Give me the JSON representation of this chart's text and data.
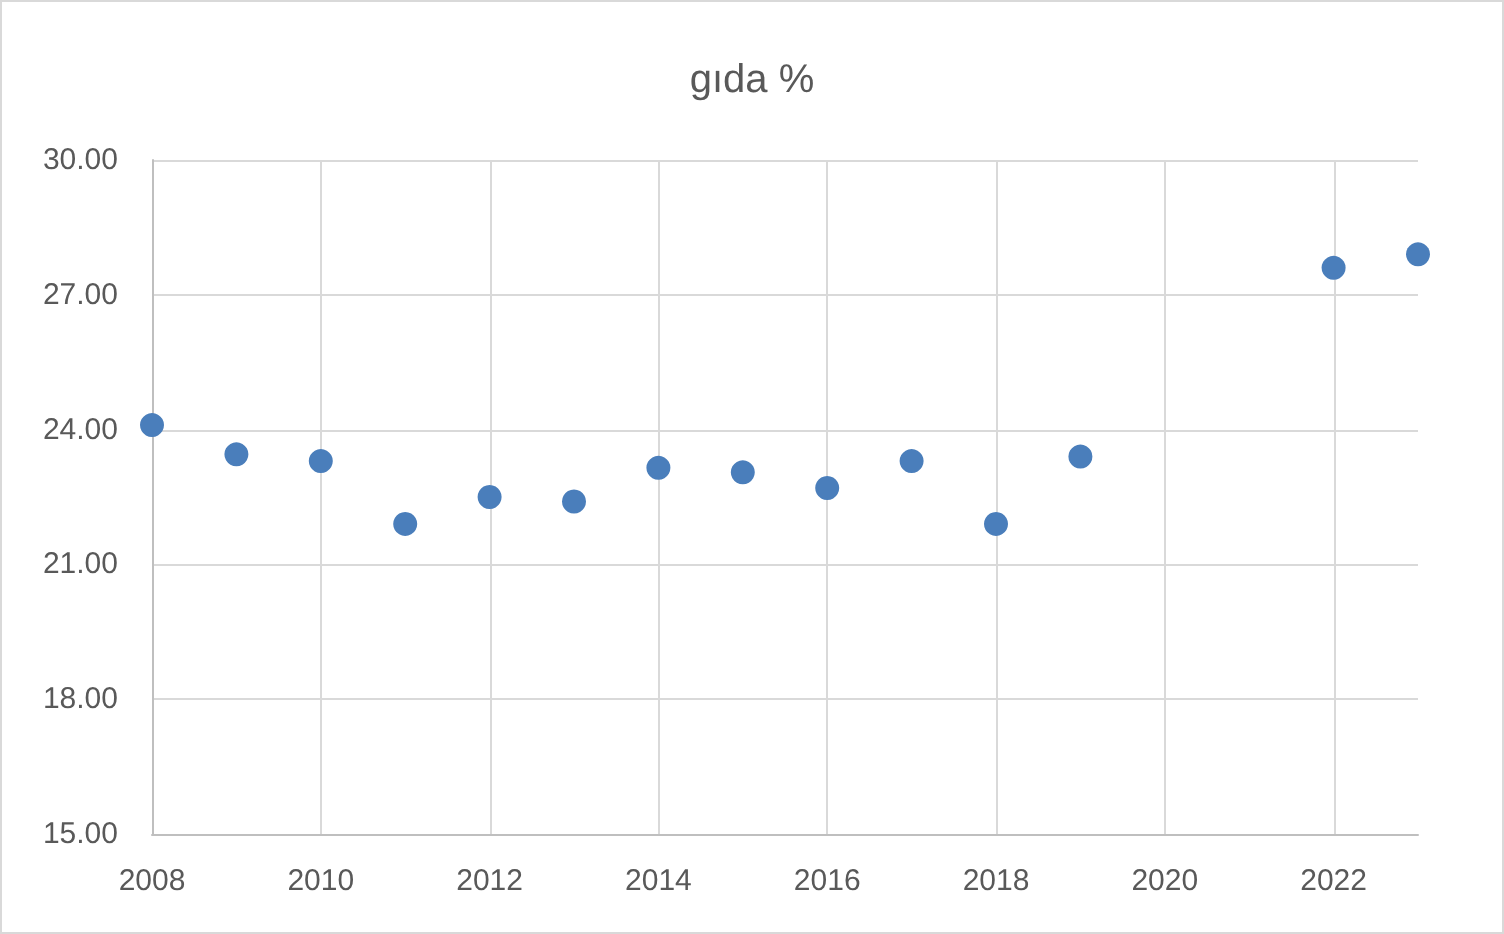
{
  "chart_data": {
    "type": "scatter",
    "title": "gıda %",
    "x": [
      2008,
      2009,
      2010,
      2011,
      2012,
      2013,
      2014,
      2015,
      2016,
      2017,
      2018,
      2019,
      2022,
      2023
    ],
    "values": [
      24.1,
      23.45,
      23.3,
      21.9,
      22.5,
      22.4,
      23.15,
      23.05,
      22.7,
      23.3,
      21.9,
      23.4,
      27.6,
      27.9
    ],
    "color": "#4a7ebb",
    "marker": "circle",
    "xlim": [
      2008,
      2023
    ],
    "xticks": [
      2008,
      2010,
      2012,
      2014,
      2016,
      2018,
      2020,
      2022
    ],
    "ylim": [
      15,
      30
    ],
    "yticks": [
      {
        "value": 15,
        "label": "15.00"
      },
      {
        "value": 18,
        "label": "18.00"
      },
      {
        "value": 21,
        "label": "21.00"
      },
      {
        "value": 24,
        "label": "24.00"
      },
      {
        "value": 27,
        "label": "27.00"
      },
      {
        "value": 30,
        "label": "30.00"
      }
    ],
    "grid": true
  }
}
